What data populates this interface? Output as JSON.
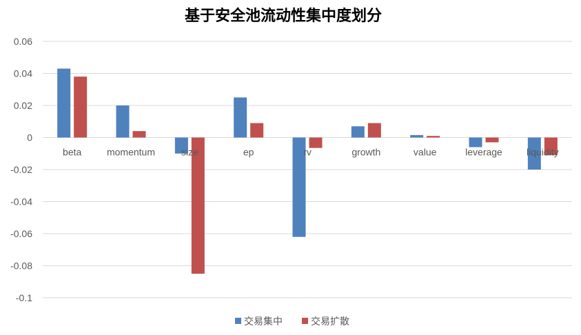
{
  "chart_data": {
    "type": "bar",
    "title": "基于安全池流动性集中度划分",
    "categories": [
      "beta",
      "momentum",
      "size",
      "ep",
      "rv",
      "growth",
      "value",
      "leverage",
      "liquidity"
    ],
    "series": [
      {
        "name": "交易集中",
        "color": "#4f81bd",
        "values": [
          0.043,
          0.02,
          -0.01,
          0.025,
          -0.062,
          0.007,
          0.0015,
          -0.006,
          -0.02
        ]
      },
      {
        "name": "交易扩散",
        "color": "#c0504d",
        "values": [
          0.038,
          0.004,
          -0.085,
          0.009,
          -0.0065,
          0.009,
          0.001,
          -0.003,
          -0.011
        ]
      }
    ],
    "ylim": [
      -0.1,
      0.06
    ],
    "yticks": [
      "0.06",
      "0.04",
      "0.02",
      "0",
      "-0.02",
      "-0.04",
      "-0.06",
      "-0.08",
      "-0.1"
    ],
    "ytick_values": [
      0.06,
      0.04,
      0.02,
      0,
      -0.02,
      -0.04,
      -0.06,
      -0.08,
      -0.1
    ],
    "grid": true,
    "legend_position": "bottom"
  }
}
